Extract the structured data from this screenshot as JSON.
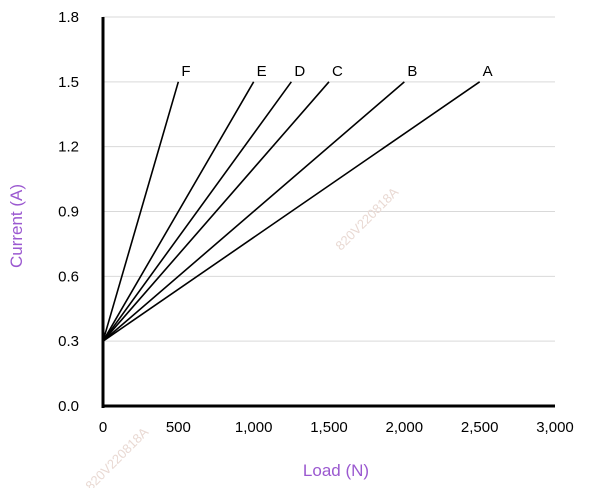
{
  "chart_data": {
    "type": "line",
    "xlabel": "Load (N)",
    "ylabel": "Current (A)",
    "xlim": [
      0,
      3000
    ],
    "ylim": [
      0,
      1.8
    ],
    "x_ticks": [
      "0",
      "500",
      "1,000",
      "1,500",
      "2,000",
      "2,500",
      "3,000"
    ],
    "y_ticks": [
      "0.0",
      "0.3",
      "0.6",
      "0.9",
      "1.2",
      "1.5",
      "1.8"
    ],
    "grid": "horizontal",
    "series": [
      {
        "name": "A",
        "x": [
          0,
          2500
        ],
        "y": [
          0.3,
          1.5
        ]
      },
      {
        "name": "B",
        "x": [
          0,
          2000
        ],
        "y": [
          0.3,
          1.5
        ]
      },
      {
        "name": "C",
        "x": [
          0,
          1500
        ],
        "y": [
          0.3,
          1.5
        ]
      },
      {
        "name": "D",
        "x": [
          0,
          1250
        ],
        "y": [
          0.3,
          1.5
        ]
      },
      {
        "name": "E",
        "x": [
          0,
          1000
        ],
        "y": [
          0.3,
          1.5
        ]
      },
      {
        "name": "F",
        "x": [
          0,
          500
        ],
        "y": [
          0.3,
          1.5
        ]
      }
    ],
    "watermarks": [
      "820V220818A",
      "820V220818A"
    ]
  },
  "colors": {
    "axis_title": "#9b59d0",
    "grid": "#d9d9d9",
    "series": "#000000",
    "axis": "#000000",
    "watermark": "#e9d9d3"
  }
}
